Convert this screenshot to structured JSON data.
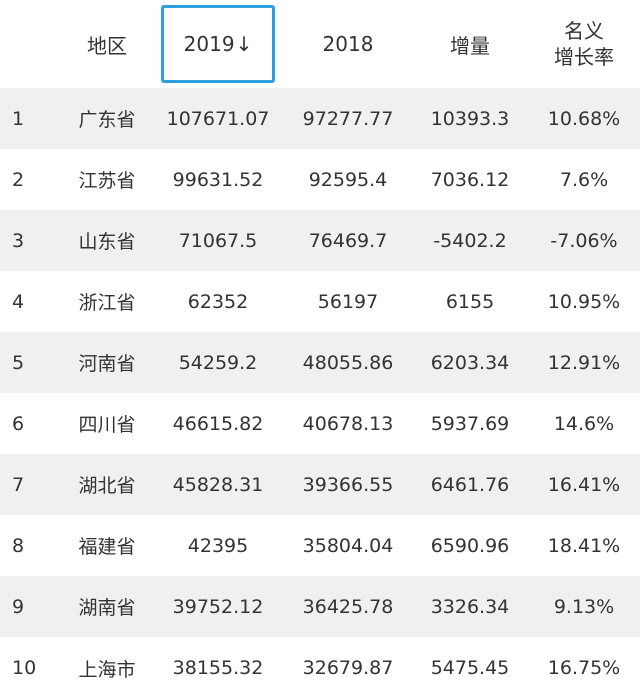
{
  "header": {
    "region": "地区",
    "y2019": "2019",
    "sort_arrow": "↓",
    "y2018": "2018",
    "increase": "增量",
    "rate_line1": "名义",
    "rate_line2": "增长率"
  },
  "rows": [
    {
      "rank": "1",
      "region": "广东省",
      "y2019": "107671.07",
      "y2018": "97277.77",
      "increase": "10393.3",
      "rate": "10.68%"
    },
    {
      "rank": "2",
      "region": "江苏省",
      "y2019": "99631.52",
      "y2018": "92595.4",
      "increase": "7036.12",
      "rate": "7.6%"
    },
    {
      "rank": "3",
      "region": "山东省",
      "y2019": "71067.5",
      "y2018": "76469.7",
      "increase": "-5402.2",
      "rate": "-7.06%"
    },
    {
      "rank": "4",
      "region": "浙江省",
      "y2019": "62352",
      "y2018": "56197",
      "increase": "6155",
      "rate": "10.95%"
    },
    {
      "rank": "5",
      "region": "河南省",
      "y2019": "54259.2",
      "y2018": "48055.86",
      "increase": "6203.34",
      "rate": "12.91%"
    },
    {
      "rank": "6",
      "region": "四川省",
      "y2019": "46615.82",
      "y2018": "40678.13",
      "increase": "5937.69",
      "rate": "14.6%"
    },
    {
      "rank": "7",
      "region": "湖北省",
      "y2019": "45828.31",
      "y2018": "39366.55",
      "increase": "6461.76",
      "rate": "16.41%"
    },
    {
      "rank": "8",
      "region": "福建省",
      "y2019": "42395",
      "y2018": "35804.04",
      "increase": "6590.96",
      "rate": "18.41%"
    },
    {
      "rank": "9",
      "region": "湖南省",
      "y2019": "39752.12",
      "y2018": "36425.78",
      "increase": "3326.34",
      "rate": "9.13%"
    },
    {
      "rank": "10",
      "region": "上海市",
      "y2019": "38155.32",
      "y2018": "32679.87",
      "increase": "5475.45",
      "rate": "16.75%"
    }
  ],
  "colors": {
    "accent_border": "#2b9fe0",
    "stripe": "#f0f0f0",
    "text": "#333333"
  }
}
